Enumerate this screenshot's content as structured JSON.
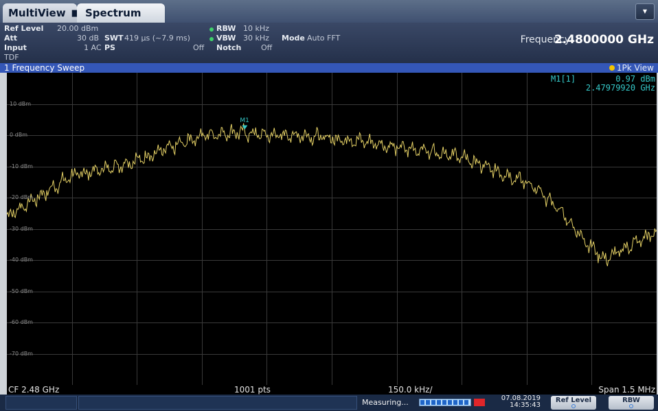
{
  "tabs": {
    "multiview": "MultiView",
    "multiview_icon": "grid-icon",
    "spectrum": "Spectrum"
  },
  "settings": {
    "ref_level_key": "Ref Level",
    "ref_level_val": "20.00 dBm",
    "att_key": "Att",
    "att_val": "30 dB",
    "swt_key": "SWT",
    "swt_val": "419 µs (~7.9 ms)",
    "rbw_key": "RBW",
    "rbw_val": "10 kHz",
    "vbw_key": "VBW",
    "vbw_val": "30 kHz",
    "mode_key": "Mode",
    "mode_val": "Auto FFT",
    "input_key": "Input",
    "input_val": "1 AC",
    "ps_key": "PS",
    "ps_val": "Off",
    "notch_key": "Notch",
    "notch_val": "Off",
    "tdf": "TDF",
    "frequency_key": "Frequency",
    "frequency_val": "2.4800000 GHz"
  },
  "window": {
    "title": "1 Frequency Sweep",
    "trace_label": "1Pk View"
  },
  "marker": {
    "name": "M1[1]",
    "level": "0.97 dBm",
    "freq": "2.47979920 GHz",
    "label": "M1"
  },
  "bottom": {
    "cf": "CF 2.48 GHz",
    "pts": "1001 pts",
    "div": "150.0 kHz/",
    "span": "Span 1.5 MHz"
  },
  "status": {
    "measuring": "Measuring...",
    "date": "07.08.2019",
    "time": "14:35:43",
    "softkey1": "Ref Level",
    "softkey2": "RBW"
  },
  "colors": {
    "trace": "#e6d266",
    "marker": "#35c9c9",
    "accent": "#3457b8"
  },
  "chart_data": {
    "type": "line",
    "xlim": [
      2.47925,
      2.48075
    ],
    "ylim": [
      -80,
      20
    ],
    "yticks": [
      "10 dBm",
      "0 dBm",
      "-10 dBm",
      "-20 dBm",
      "-30 dBm",
      "-40 dBm",
      "-50 dBm",
      "-60 dBm",
      "-70 dBm"
    ],
    "ytick_values": [
      10,
      0,
      -10,
      -20,
      -30,
      -40,
      -50,
      -60,
      -70
    ],
    "series": [
      {
        "x": [
          2.47925,
          2.47932,
          2.4794,
          2.47947,
          2.47955,
          2.47963,
          2.4797,
          2.47978,
          2.47985,
          2.47993,
          2.48,
          2.48008,
          2.48015,
          2.48023,
          2.4803,
          2.48037,
          2.48045,
          2.48052,
          2.48058,
          2.48063,
          2.48068,
          2.48075
        ],
        "y": [
          -26,
          -20,
          -13,
          -11,
          -8,
          -4,
          0,
          1,
          0,
          0,
          -1,
          -2,
          -4,
          -5,
          -7,
          -11,
          -15,
          -23,
          -33,
          -40,
          -36,
          -31
        ]
      }
    ],
    "marker": {
      "x": 2.4797992,
      "y": 0.97
    }
  }
}
